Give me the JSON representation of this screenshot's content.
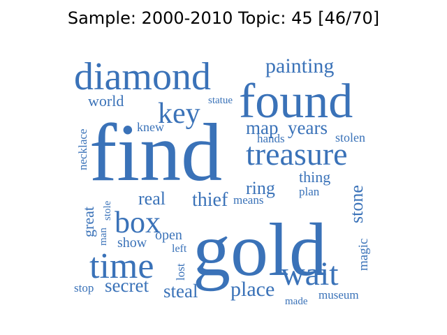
{
  "title": "Sample: 2000-2010 Topic: 45 [46/70]",
  "word_color": "#3a72b8",
  "words": [
    {
      "text": "find",
      "weight": 1.0
    },
    {
      "text": "gold",
      "weight": 0.95
    },
    {
      "text": "found",
      "weight": 0.62
    },
    {
      "text": "diamond",
      "weight": 0.55
    },
    {
      "text": "treasure",
      "weight": 0.45
    },
    {
      "text": "time",
      "weight": 0.45
    },
    {
      "text": "wait",
      "weight": 0.42
    },
    {
      "text": "key",
      "weight": 0.38
    },
    {
      "text": "box",
      "weight": 0.38
    },
    {
      "text": "place",
      "weight": 0.27
    },
    {
      "text": "map",
      "weight": 0.25
    },
    {
      "text": "years",
      "weight": 0.25
    },
    {
      "text": "painting",
      "weight": 0.25
    },
    {
      "text": "secret",
      "weight": 0.24
    },
    {
      "text": "steal",
      "weight": 0.24
    },
    {
      "text": "thief",
      "weight": 0.23
    },
    {
      "text": "ring",
      "weight": 0.22
    },
    {
      "text": "real",
      "weight": 0.22
    },
    {
      "text": "stone",
      "weight": 0.22
    },
    {
      "text": "world",
      "weight": 0.19
    },
    {
      "text": "great",
      "weight": 0.19
    },
    {
      "text": "thing",
      "weight": 0.19
    },
    {
      "text": "open",
      "weight": 0.17
    },
    {
      "text": "show",
      "weight": 0.17
    },
    {
      "text": "magic",
      "weight": 0.17
    },
    {
      "text": "stolen",
      "weight": 0.16
    },
    {
      "text": "knew",
      "weight": 0.16
    },
    {
      "text": "hands",
      "weight": 0.15
    },
    {
      "text": "plan",
      "weight": 0.15
    },
    {
      "text": "means",
      "weight": 0.15
    },
    {
      "text": "museum",
      "weight": 0.15
    },
    {
      "text": "necklace",
      "weight": 0.15
    },
    {
      "text": "stop",
      "weight": 0.15
    },
    {
      "text": "left",
      "weight": 0.14
    },
    {
      "text": "lost",
      "weight": 0.14
    },
    {
      "text": "statue",
      "weight": 0.14
    },
    {
      "text": "stole",
      "weight": 0.13
    },
    {
      "text": "man",
      "weight": 0.13
    },
    {
      "text": "made",
      "weight": 0.13
    }
  ]
}
